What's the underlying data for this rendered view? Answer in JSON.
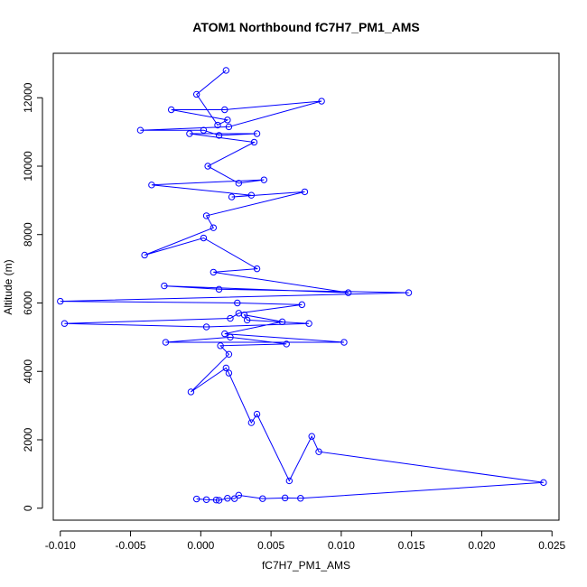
{
  "chart_data": {
    "type": "line",
    "title": "ATOM1 Northbound fC7H7_PM1_AMS",
    "xlabel": "fC7H7_PM1_AMS",
    "ylabel": "Altitude (m)",
    "xlim": [
      -0.0105,
      0.0255
    ],
    "ylim": [
      -350,
      13300
    ],
    "xticks": [
      -0.01,
      -0.005,
      0.0,
      0.005,
      0.01,
      0.015,
      0.02,
      0.025
    ],
    "xtick_labels": [
      "-0.010",
      "-0.005",
      "0.000",
      "0.005",
      "0.010",
      "0.015",
      "0.020",
      "0.025"
    ],
    "yticks": [
      0,
      2000,
      4000,
      6000,
      8000,
      10000,
      12000
    ],
    "ytick_labels": [
      "0",
      "2000",
      "4000",
      "6000",
      "8000",
      "10000",
      "12000"
    ],
    "grid": false,
    "line_color": "#0000ff",
    "marker": "open-circle",
    "series": [
      {
        "x": [
          -0.0003,
          0.0004,
          0.0011,
          0.0013,
          0.0019,
          0.0024,
          0.0027,
          0.0044,
          0.006,
          0.0071,
          0.0244,
          0.0084,
          0.0079,
          0.0063,
          0.004,
          0.0036,
          0.002,
          0.0018,
          -0.0007,
          0.002,
          0.0014,
          0.0061,
          0.0021,
          -0.0025,
          0.0102,
          0.0017,
          0.0058,
          0.0031,
          0.0033,
          0.0077,
          0.0004,
          -0.0097,
          0.0021,
          0.0027,
          0.0072,
          0.0026,
          -0.01,
          0.0148,
          0.0013,
          -0.0026,
          0.0105,
          0.0009,
          0.004,
          0.0002,
          -0.004,
          0.0009,
          0.0004,
          0.0074,
          0.0022,
          0.0036,
          -0.0035,
          0.0045,
          0.0027,
          0.0005,
          0.0038,
          -0.0008,
          0.004,
          0.0013,
          0.0002,
          -0.0043,
          0.002,
          0.0086,
          0.0017,
          -0.0021,
          0.0019,
          0.0012,
          -0.0003,
          0.0018
        ],
        "y": [
          270,
          250,
          240,
          230,
          290,
          280,
          380,
          280,
          300,
          290,
          750,
          1650,
          2100,
          800,
          2750,
          2500,
          3950,
          4100,
          3400,
          4500,
          4750,
          4800,
          5000,
          4850,
          4850,
          5100,
          5450,
          5650,
          5500,
          5400,
          5300,
          5400,
          5550,
          5700,
          5950,
          6000,
          6050,
          6300,
          6400,
          6500,
          6300,
          6900,
          7000,
          7900,
          7400,
          8200,
          8550,
          9250,
          9100,
          9150,
          9450,
          9600,
          9500,
          10000,
          10700,
          10950,
          10950,
          10900,
          11050,
          11050,
          11150,
          11900,
          11650,
          11650,
          11350,
          11200,
          12100,
          12800
        ]
      }
    ]
  }
}
